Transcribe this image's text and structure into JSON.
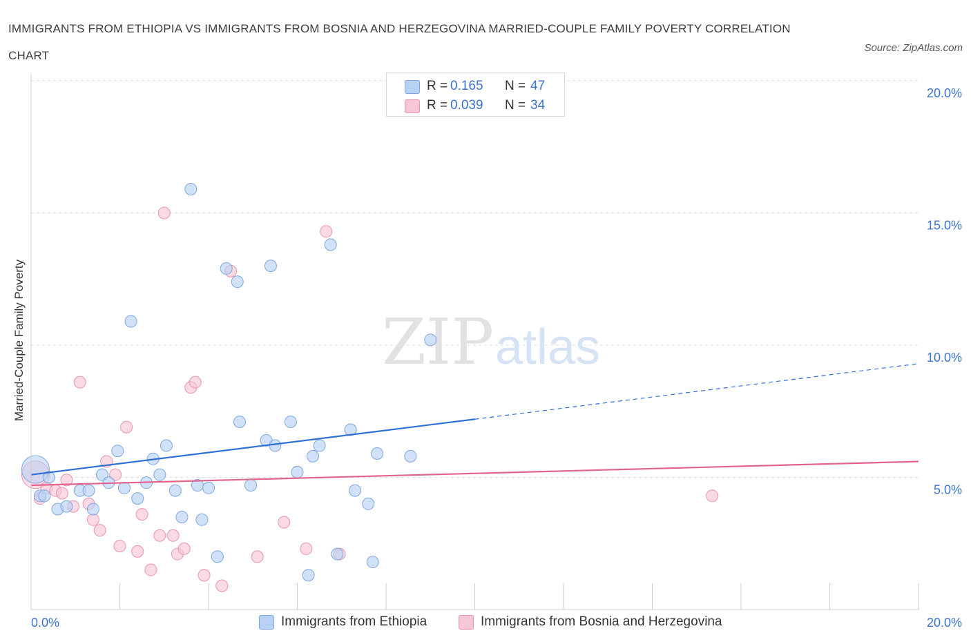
{
  "title": "IMMIGRANTS FROM ETHIOPIA VS IMMIGRANTS FROM BOSNIA AND HERZEGOVINA MARRIED-COUPLE FAMILY POVERTY CORRELATION CHART",
  "source": "Source: ZipAtlas.com",
  "watermark": {
    "zip": "ZIP",
    "atlas": "atlas"
  },
  "legend_top": {
    "r_label": "R =",
    "n_label": "N =",
    "rows": [
      {
        "r": "0.165",
        "n": "47"
      },
      {
        "r": "0.039",
        "n": "34"
      }
    ]
  },
  "colors": {
    "ethiopia_fill": "#b9d2f4",
    "ethiopia_stroke": "#7da6e3",
    "ethiopia_line": "#2f6fd6",
    "bosnia_fill": "#f8c7d5",
    "bosnia_stroke": "#ea93ad",
    "bosnia_line": "#e2648e",
    "value_text": "#3d73d0",
    "grid": "#dddddd"
  },
  "chart_data": {
    "type": "scatter",
    "title": "IMMIGRANTS FROM ETHIOPIA VS IMMIGRANTS FROM BOSNIA AND HERZEGOVINA MARRIED-COUPLE FAMILY POVERTY CORRELATION CHART",
    "xlabel": "",
    "ylabel": "Married-Couple Family Poverty",
    "xlim": [
      0,
      20
    ],
    "ylim": [
      0,
      20
    ],
    "x_tick_labels": [
      "0.0%",
      "20.0%"
    ],
    "y_ticks": [
      5,
      10,
      15,
      20
    ],
    "y_tick_labels": [
      "5.0%",
      "10.0%",
      "15.0%",
      "20.0%"
    ],
    "grid": true,
    "legend_position": "bottom",
    "series": [
      {
        "name": "Immigrants from Ethiopia",
        "r": 0.165,
        "n": 47,
        "trend": {
          "x0": 0,
          "y0": 5.1,
          "x1": 20,
          "y1": 9.3,
          "solid_until_x": 10
        },
        "points": [
          {
            "x": 0.1,
            "y": 5.3,
            "big": true
          },
          {
            "x": 0.2,
            "y": 4.3
          },
          {
            "x": 0.4,
            "y": 5.0
          },
          {
            "x": 0.6,
            "y": 3.8
          },
          {
            "x": 0.8,
            "y": 3.9
          },
          {
            "x": 1.1,
            "y": 4.5
          },
          {
            "x": 1.3,
            "y": 4.5
          },
          {
            "x": 1.4,
            "y": 3.8
          },
          {
            "x": 1.6,
            "y": 5.1
          },
          {
            "x": 1.75,
            "y": 4.8
          },
          {
            "x": 1.95,
            "y": 6.0
          },
          {
            "x": 2.1,
            "y": 4.6
          },
          {
            "x": 2.25,
            "y": 10.9
          },
          {
            "x": 2.4,
            "y": 4.2
          },
          {
            "x": 2.6,
            "y": 4.8
          },
          {
            "x": 2.75,
            "y": 5.7
          },
          {
            "x": 2.9,
            "y": 5.1
          },
          {
            "x": 3.05,
            "y": 6.2
          },
          {
            "x": 3.25,
            "y": 4.5
          },
          {
            "x": 3.4,
            "y": 3.5
          },
          {
            "x": 3.6,
            "y": 15.9
          },
          {
            "x": 3.75,
            "y": 4.7
          },
          {
            "x": 3.85,
            "y": 3.4
          },
          {
            "x": 4.0,
            "y": 4.6
          },
          {
            "x": 4.2,
            "y": 2.0
          },
          {
            "x": 4.4,
            "y": 12.9
          },
          {
            "x": 4.65,
            "y": 12.4
          },
          {
            "x": 4.7,
            "y": 7.1
          },
          {
            "x": 4.95,
            "y": 4.7
          },
          {
            "x": 5.3,
            "y": 6.4
          },
          {
            "x": 5.4,
            "y": 13.0
          },
          {
            "x": 5.5,
            "y": 6.2
          },
          {
            "x": 5.85,
            "y": 7.1
          },
          {
            "x": 6.0,
            "y": 5.2
          },
          {
            "x": 6.25,
            "y": 1.3
          },
          {
            "x": 6.35,
            "y": 5.8
          },
          {
            "x": 6.5,
            "y": 6.2
          },
          {
            "x": 6.75,
            "y": 13.8
          },
          {
            "x": 6.9,
            "y": 2.1
          },
          {
            "x": 7.2,
            "y": 6.8
          },
          {
            "x": 7.3,
            "y": 4.5
          },
          {
            "x": 7.6,
            "y": 4.0
          },
          {
            "x": 7.7,
            "y": 1.8
          },
          {
            "x": 7.8,
            "y": 5.9
          },
          {
            "x": 8.55,
            "y": 5.8
          },
          {
            "x": 9.0,
            "y": 10.2
          },
          {
            "x": 0.3,
            "y": 4.3
          }
        ]
      },
      {
        "name": "Immigrants from Bosnia and Herzegovina",
        "r": 0.039,
        "n": 34,
        "trend": {
          "x0": 0,
          "y0": 4.7,
          "x1": 20,
          "y1": 5.6,
          "solid_until_x": 20
        },
        "points": [
          {
            "x": 0.1,
            "y": 5.1,
            "big": true
          },
          {
            "x": 0.2,
            "y": 4.2
          },
          {
            "x": 0.35,
            "y": 4.6
          },
          {
            "x": 0.55,
            "y": 4.5
          },
          {
            "x": 0.7,
            "y": 4.4
          },
          {
            "x": 0.8,
            "y": 4.9
          },
          {
            "x": 0.95,
            "y": 3.9
          },
          {
            "x": 1.1,
            "y": 8.6
          },
          {
            "x": 1.3,
            "y": 4.0
          },
          {
            "x": 1.4,
            "y": 3.4
          },
          {
            "x": 1.55,
            "y": 3.0
          },
          {
            "x": 1.7,
            "y": 5.6
          },
          {
            "x": 1.9,
            "y": 5.1
          },
          {
            "x": 2.0,
            "y": 2.4
          },
          {
            "x": 2.15,
            "y": 6.9
          },
          {
            "x": 2.4,
            "y": 2.2
          },
          {
            "x": 2.5,
            "y": 3.6
          },
          {
            "x": 2.7,
            "y": 1.5
          },
          {
            "x": 2.9,
            "y": 2.8
          },
          {
            "x": 3.0,
            "y": 15.0
          },
          {
            "x": 3.2,
            "y": 2.8
          },
          {
            "x": 3.3,
            "y": 2.1
          },
          {
            "x": 3.45,
            "y": 2.3
          },
          {
            "x": 3.6,
            "y": 8.4
          },
          {
            "x": 3.7,
            "y": 8.6
          },
          {
            "x": 3.9,
            "y": 1.3
          },
          {
            "x": 4.3,
            "y": 0.9
          },
          {
            "x": 4.5,
            "y": 12.8
          },
          {
            "x": 5.1,
            "y": 2.0
          },
          {
            "x": 5.7,
            "y": 3.3
          },
          {
            "x": 6.2,
            "y": 2.3
          },
          {
            "x": 6.65,
            "y": 14.3
          },
          {
            "x": 6.95,
            "y": 2.1
          },
          {
            "x": 15.35,
            "y": 4.3
          }
        ]
      }
    ]
  }
}
